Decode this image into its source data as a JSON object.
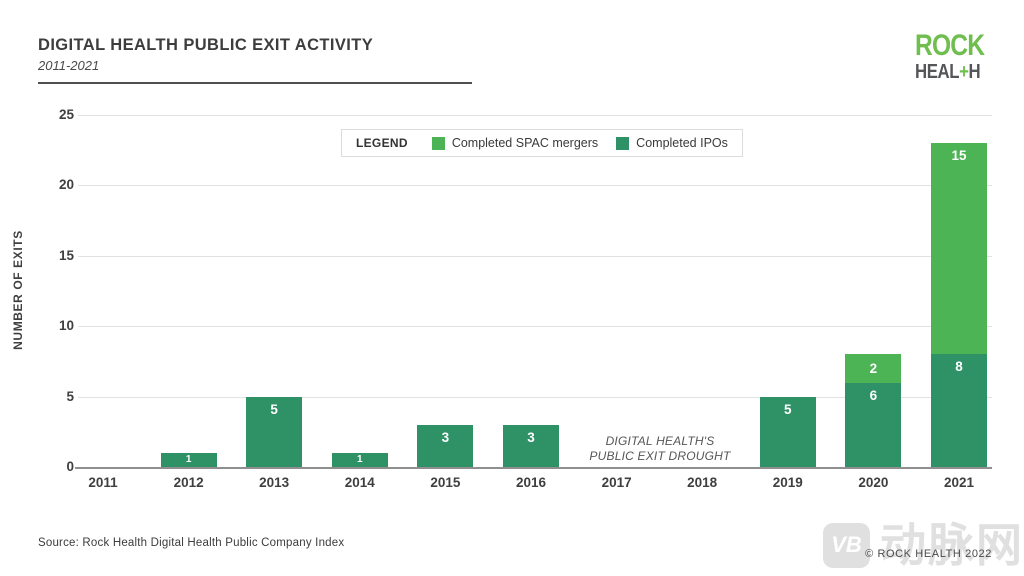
{
  "header": {
    "title": "DIGITAL HEALTH PUBLIC EXIT ACTIVITY",
    "subtitle": "2011-2021"
  },
  "logo": {
    "line1": "ROCK",
    "line2_pre": "HEAL",
    "line2_plus": "+",
    "line2_post": "H",
    "green": "#6FBE4F",
    "gray": "#55565A"
  },
  "legend": {
    "title": "LEGEND",
    "items": [
      {
        "label": "Completed SPAC mergers",
        "color": "#4CB455"
      },
      {
        "label": "Completed IPOs",
        "color": "#2E9266"
      }
    ]
  },
  "chart_data": {
    "type": "bar",
    "stacked": true,
    "title": "DIGITAL HEALTH PUBLIC EXIT ACTIVITY",
    "subtitle": "2011-2021",
    "xlabel": "",
    "ylabel": "NUMBER OF EXITS",
    "categories": [
      "2011",
      "2012",
      "2013",
      "2014",
      "2015",
      "2016",
      "2017",
      "2018",
      "2019",
      "2020",
      "2021"
    ],
    "series": [
      {
        "name": "Completed IPOs",
        "color": "#2E9266",
        "values": [
          0,
          1,
          5,
          1,
          3,
          3,
          0,
          0,
          5,
          6,
          8
        ]
      },
      {
        "name": "Completed SPAC mergers",
        "color": "#4CB455",
        "values": [
          0,
          0,
          0,
          0,
          0,
          0,
          0,
          0,
          0,
          2,
          15
        ]
      }
    ],
    "totals": [
      0,
      1,
      5,
      1,
      3,
      3,
      0,
      0,
      5,
      8,
      23
    ],
    "yticks": [
      0,
      5,
      10,
      15,
      20,
      25
    ],
    "ylim": [
      0,
      25
    ],
    "grid": "horizontal",
    "legend_position": "top-center",
    "annotation": [
      "DIGITAL HEALTH'S",
      "PUBLIC EXIT DROUGHT"
    ]
  },
  "footer": {
    "source": "Source: Rock Health Digital Health Public Company Index",
    "copyright": "© ROCK HEALTH 2022"
  },
  "watermark": {
    "badge": "VB",
    "text": "动脉网"
  }
}
